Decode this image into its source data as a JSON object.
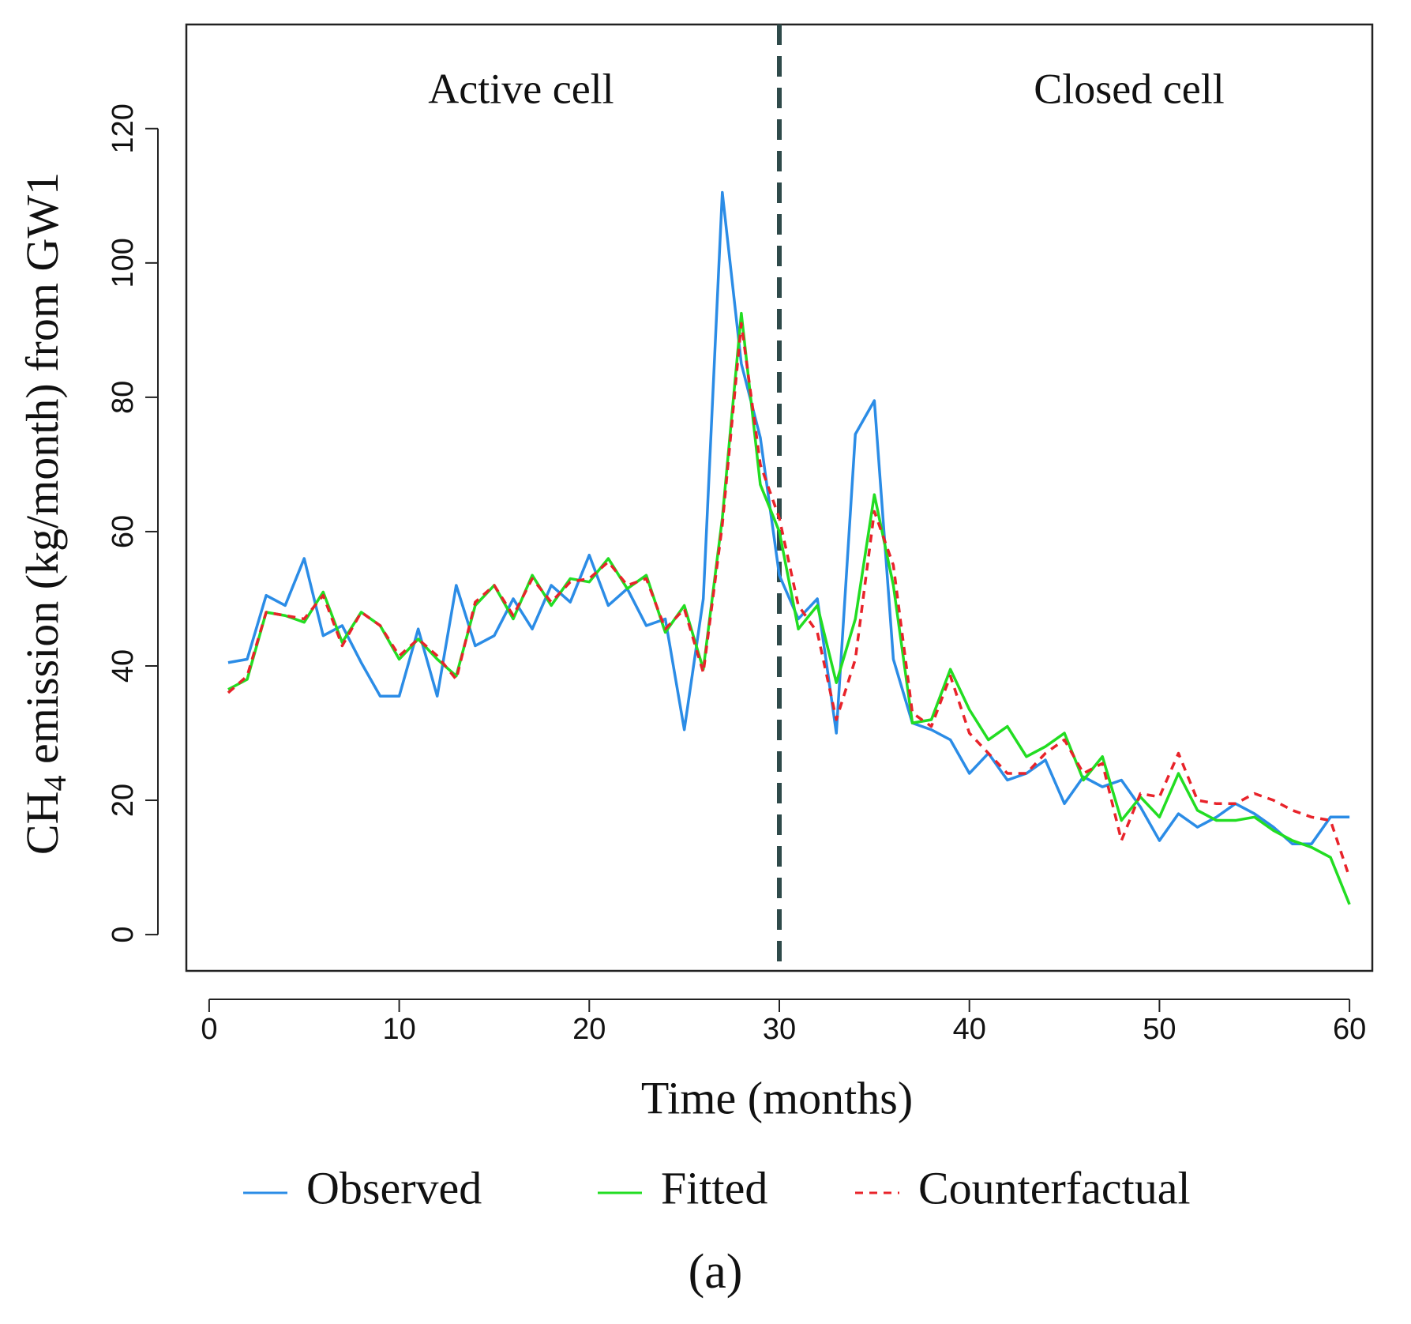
{
  "chart_data": {
    "type": "line",
    "x_label": "Time (months)",
    "y_label": {
      "prefix": "CH",
      "subscript": "4",
      "suffix": " emission (kg/month) from GW1"
    },
    "annotations": [
      "Active cell",
      "Closed cell"
    ],
    "caption": "(a)",
    "vline": 30,
    "vline_color": "#2f4a4a",
    "x": [
      1,
      2,
      3,
      4,
      5,
      6,
      7,
      8,
      9,
      10,
      11,
      12,
      13,
      14,
      15,
      16,
      17,
      18,
      19,
      20,
      21,
      22,
      23,
      24,
      25,
      26,
      27,
      28,
      29,
      30,
      31,
      32,
      33,
      34,
      35,
      36,
      37,
      38,
      39,
      40,
      41,
      42,
      43,
      44,
      45,
      46,
      47,
      48,
      49,
      50,
      51,
      52,
      53,
      54,
      55,
      56,
      57,
      58,
      59,
      60
    ],
    "series": [
      {
        "name": "Observed",
        "color": "#2b8ce6",
        "dash": false,
        "values": [
          40.5,
          41,
          50.5,
          49,
          56,
          44.5,
          46,
          40.5,
          35.5,
          35.5,
          45.5,
          35.5,
          52,
          43,
          44.5,
          50,
          45.5,
          52,
          49.5,
          56.5,
          49,
          51.5,
          46,
          47,
          30.5,
          50,
          110.5,
          85,
          74,
          53.5,
          47,
          50,
          30,
          74.5,
          79.5,
          41,
          31.5,
          30.5,
          29,
          24,
          27,
          23,
          24,
          26,
          19.5,
          23.5,
          22,
          23,
          19,
          14,
          18,
          16,
          17.5,
          19.5,
          18,
          16,
          13.5,
          13.5,
          17.5,
          17.5
        ]
      },
      {
        "name": "Fitted",
        "color": "#22dd22",
        "dash": false,
        "values": [
          36.5,
          38,
          48,
          47.5,
          46.5,
          51,
          43.5,
          48,
          46,
          41,
          44,
          41,
          38.5,
          49,
          52,
          47,
          53.5,
          49,
          53,
          52.5,
          56,
          51.5,
          53.5,
          45,
          49,
          39.5,
          62,
          92.5,
          67,
          60,
          45.5,
          49,
          37.5,
          47,
          65.5,
          52,
          31.5,
          32,
          39.5,
          33.5,
          29,
          31,
          26.5,
          28,
          30,
          23,
          26.5,
          17,
          20.5,
          17.5,
          24,
          18.5,
          17,
          17,
          17.5,
          15.5,
          14,
          13,
          11.5,
          4.5
        ]
      },
      {
        "name": "Counterfactual",
        "color": "#e8232a",
        "dash": true,
        "values": [
          36,
          38.5,
          48,
          47.5,
          47,
          50.5,
          43,
          48,
          46,
          41.5,
          44,
          41.5,
          38,
          49.5,
          52,
          47.5,
          53,
          49.5,
          52.5,
          53,
          55.5,
          52,
          53,
          45.5,
          48.5,
          39,
          61,
          91,
          70,
          62,
          49,
          45,
          32,
          41,
          63,
          55,
          33,
          31,
          38.5,
          30,
          27,
          24,
          24,
          27,
          29,
          24,
          25.5,
          14,
          21,
          20.5,
          27,
          20,
          19.5,
          19.5,
          21,
          20,
          18.5,
          17.5,
          17,
          8.5
        ]
      }
    ],
    "xlim": [
      -1.2,
      61.2
    ],
    "ylim": [
      -5.4,
      135.5
    ],
    "xticks": [
      0,
      10,
      20,
      30,
      40,
      50,
      60
    ],
    "yticks": [
      0,
      20,
      40,
      60,
      80,
      100,
      120
    ]
  }
}
